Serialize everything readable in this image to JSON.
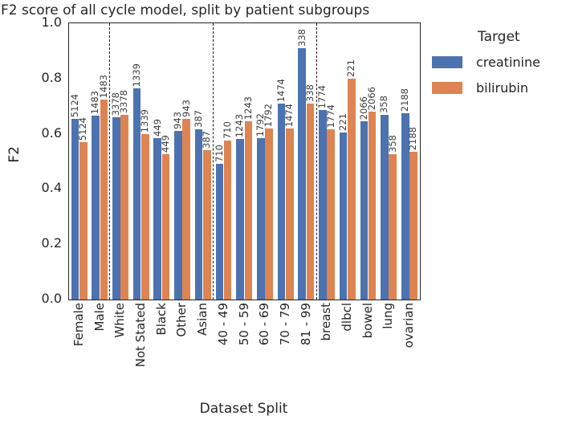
{
  "chart_data": {
    "type": "bar",
    "title": "F2 score of all cycle model, split by patient subgroups",
    "xlabel": "Dataset Split",
    "ylabel": "F2",
    "ylim": [
      0.0,
      1.0
    ],
    "yticks": [
      0.0,
      0.2,
      0.4,
      0.6,
      0.8,
      1.0
    ],
    "grid": false,
    "categories": [
      "Female",
      "Male",
      "White",
      "Not Stated",
      "Black",
      "Other",
      "Asian",
      "40 - 49",
      "50 - 59",
      "60 - 69",
      "70 - 79",
      "81 - 99",
      "breast",
      "dlbcl",
      "bowel",
      "lung",
      "ovarian"
    ],
    "bar_count_labels": [
      5124,
      1483,
      3378,
      1339,
      449,
      943,
      387,
      710,
      1243,
      1792,
      1474,
      338,
      1774,
      221,
      2066,
      358,
      2188
    ],
    "series": [
      {
        "name": "creatinine",
        "color": "#4C72B0",
        "values": [
          0.655,
          0.665,
          0.66,
          0.765,
          0.585,
          0.61,
          0.615,
          0.49,
          0.58,
          0.585,
          0.71,
          0.91,
          0.685,
          0.605,
          0.645,
          0.67,
          0.675
        ]
      },
      {
        "name": "bilirubin",
        "color": "#DD8452",
        "values": [
          0.57,
          0.725,
          0.67,
          0.6,
          0.525,
          0.655,
          0.54,
          0.575,
          0.645,
          0.62,
          0.62,
          0.71,
          0.615,
          0.8,
          0.68,
          0.525,
          0.535
        ]
      }
    ],
    "separator_before_indices": [
      2,
      7,
      12
    ],
    "legend": {
      "title": "Target",
      "position": "upper right outside"
    }
  }
}
